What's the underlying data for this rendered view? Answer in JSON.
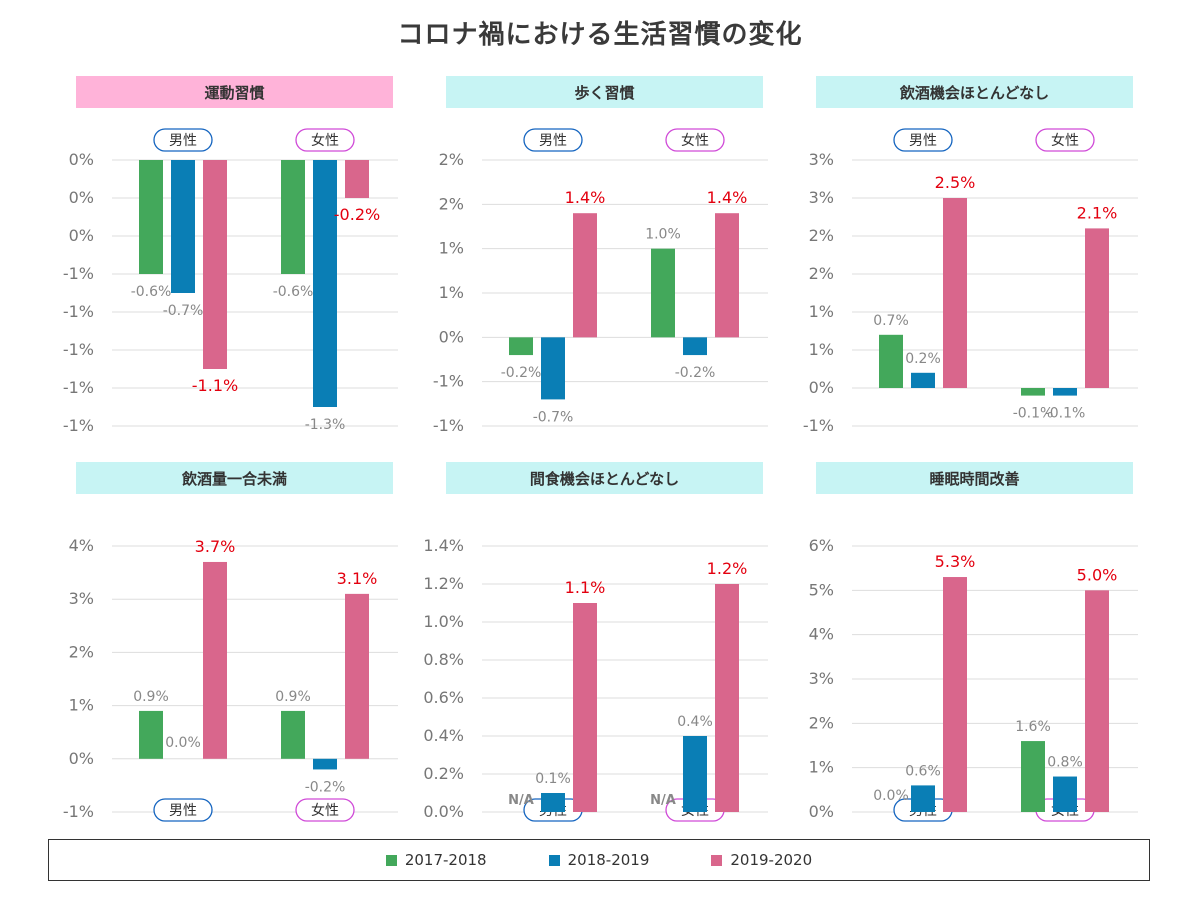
{
  "title": "コロナ禍における生活習慣の変化",
  "colors": {
    "2017-2018": "#43a85b",
    "2018-2019": "#0a7eb5",
    "2019-2020": "#d9668c",
    "pink_header": "#ffb3d9",
    "cyan_header": "#c7f4f4",
    "male": "#1565c0",
    "female": "#d04ad8",
    "highlight": "#e3000f",
    "label": "#888888"
  },
  "legend": [
    {
      "name": "2017-2018",
      "color": "#43a85b"
    },
    {
      "name": "2018-2019",
      "color": "#0a7eb5"
    },
    {
      "name": "2019-2020",
      "color": "#d9668c"
    }
  ],
  "chart_data": [
    {
      "type": "bar",
      "title": "運動習慣",
      "header": "pink",
      "categories": [
        "男性",
        "女性"
      ],
      "category_position": "top",
      "ylim": [
        -1.4,
        0
      ],
      "yticks": [
        0,
        -0.2,
        -0.4,
        -0.6,
        -0.8,
        -1.0,
        -1.2,
        -1.4
      ],
      "ytick_labels": [
        "0%",
        "0%",
        "0%",
        "-1%",
        "-1%",
        "-1%",
        "-1%",
        "-1%"
      ],
      "series": [
        {
          "name": "2017-2018",
          "values": [
            -0.6,
            -0.6
          ],
          "labels": [
            "-0.6%",
            "-0.6%"
          ]
        },
        {
          "name": "2018-2019",
          "values": [
            -0.7,
            -1.3
          ],
          "labels": [
            "-0.7%",
            "-1.3%"
          ]
        },
        {
          "name": "2019-2020",
          "values": [
            -1.1,
            -0.2
          ],
          "labels": [
            "-1.1%",
            "-0.2%"
          ]
        }
      ]
    },
    {
      "type": "bar",
      "title": "歩く習慣",
      "header": "cyan",
      "categories": [
        "男性",
        "女性"
      ],
      "category_position": "top",
      "ylim": [
        -1.0,
        2.0
      ],
      "yticks": [
        2.0,
        1.5,
        1.0,
        0.5,
        0,
        -0.5,
        -1.0
      ],
      "ytick_labels": [
        "2%",
        "2%",
        "1%",
        "1%",
        "0%",
        "-1%",
        "-1%"
      ],
      "series": [
        {
          "name": "2017-2018",
          "values": [
            -0.2,
            1.0
          ],
          "labels": [
            "-0.2%",
            "1.0%"
          ]
        },
        {
          "name": "2018-2019",
          "values": [
            -0.7,
            -0.2
          ],
          "labels": [
            "-0.7%",
            "-0.2%"
          ]
        },
        {
          "name": "2019-2020",
          "values": [
            1.4,
            1.4
          ],
          "labels": [
            "1.4%",
            "1.4%"
          ]
        }
      ]
    },
    {
      "type": "bar",
      "title": "飲酒機会ほとんどなし",
      "header": "cyan",
      "categories": [
        "男性",
        "女性"
      ],
      "category_position": "top",
      "ylim": [
        -0.5,
        3.0
      ],
      "yticks": [
        3.0,
        2.5,
        2.0,
        1.5,
        1.0,
        0.5,
        0,
        -0.5
      ],
      "ytick_labels": [
        "3%",
        "3%",
        "2%",
        "2%",
        "1%",
        "1%",
        "0%",
        "-1%"
      ],
      "series": [
        {
          "name": "2017-2018",
          "values": [
            0.7,
            -0.1
          ],
          "labels": [
            "0.7%",
            "-0.1%"
          ]
        },
        {
          "name": "2018-2019",
          "values": [
            0.2,
            -0.1
          ],
          "labels": [
            "0.2%",
            "-0.1%"
          ]
        },
        {
          "name": "2019-2020",
          "values": [
            2.5,
            2.1
          ],
          "labels": [
            "2.5%",
            "2.1%"
          ]
        }
      ]
    },
    {
      "type": "bar",
      "title": "飲酒量一合未満",
      "header": "cyan",
      "categories": [
        "男性",
        "女性"
      ],
      "category_position": "bottom",
      "ylim": [
        -1,
        4
      ],
      "yticks": [
        4,
        3,
        2,
        1,
        0,
        -1
      ],
      "ytick_labels": [
        "4%",
        "3%",
        "2%",
        "1%",
        "0%",
        "-1%"
      ],
      "series": [
        {
          "name": "2017-2018",
          "values": [
            0.9,
            0.9
          ],
          "labels": [
            "0.9%",
            "0.9%"
          ]
        },
        {
          "name": "2018-2019",
          "values": [
            0.0,
            -0.2
          ],
          "labels": [
            "0.0%",
            "-0.2%"
          ]
        },
        {
          "name": "2019-2020",
          "values": [
            3.7,
            3.1
          ],
          "labels": [
            "3.7%",
            "3.1%"
          ]
        }
      ]
    },
    {
      "type": "bar",
      "title": "間食機会ほとんどなし",
      "header": "cyan",
      "categories": [
        "男性",
        "女性"
      ],
      "category_position": "bottom",
      "ylim": [
        0,
        1.4
      ],
      "yticks": [
        1.4,
        1.2,
        1.0,
        0.8,
        0.6,
        0.4,
        0.2,
        0
      ],
      "ytick_labels": [
        "1.4%",
        "1.2%",
        "1.0%",
        "0.8%",
        "0.6%",
        "0.4%",
        "0.2%",
        "0.0%"
      ],
      "series": [
        {
          "name": "2017-2018",
          "values": [
            null,
            null
          ],
          "labels": [
            "N/A",
            "N/A"
          ]
        },
        {
          "name": "2018-2019",
          "values": [
            0.1,
            0.4
          ],
          "labels": [
            "0.1%",
            "0.4%"
          ]
        },
        {
          "name": "2019-2020",
          "values": [
            1.1,
            1.2
          ],
          "labels": [
            "1.1%",
            "1.2%"
          ]
        }
      ]
    },
    {
      "type": "bar",
      "title": "睡眠時間改善",
      "header": "cyan",
      "categories": [
        "男性",
        "女性"
      ],
      "category_position": "bottom",
      "ylim": [
        0,
        6
      ],
      "yticks": [
        6,
        5,
        4,
        3,
        2,
        1,
        0
      ],
      "ytick_labels": [
        "6%",
        "5%",
        "4%",
        "3%",
        "2%",
        "1%",
        "0%"
      ],
      "series": [
        {
          "name": "2017-2018",
          "values": [
            0.0,
            1.6
          ],
          "labels": [
            "0.0%",
            "1.6%"
          ]
        },
        {
          "name": "2018-2019",
          "values": [
            0.6,
            0.8
          ],
          "labels": [
            "0.6%",
            "0.8%"
          ]
        },
        {
          "name": "2019-2020",
          "values": [
            5.3,
            5.0
          ],
          "labels": [
            "5.3%",
            "5.0%"
          ]
        }
      ]
    }
  ]
}
